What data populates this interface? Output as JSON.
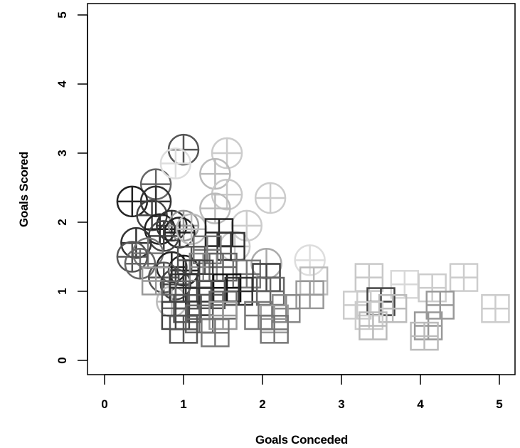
{
  "chart_data": {
    "type": "scatter",
    "xlabel": "Goals Conceded",
    "ylabel": "Goals Scored",
    "xlim": [
      -0.2,
      5.2
    ],
    "ylim": [
      -0.2,
      5.2
    ],
    "x_ticks": [
      "0",
      "1",
      "2",
      "3",
      "4",
      "5"
    ],
    "y_ticks": [
      "0",
      "1",
      "2",
      "3",
      "4",
      "5"
    ],
    "grid": false,
    "legend": "none",
    "series": [
      {
        "marker": "circle-plus",
        "points": [
          {
            "x": 1.0,
            "y": 3.05,
            "shade": "#555555"
          },
          {
            "x": 0.65,
            "y": 2.55,
            "shade": "#666666"
          },
          {
            "x": 0.9,
            "y": 2.85,
            "shade": "#dddddd"
          },
          {
            "x": 1.55,
            "y": 3.0,
            "shade": "#cccccc"
          },
          {
            "x": 1.4,
            "y": 2.7,
            "shade": "#bbbbbb"
          },
          {
            "x": 1.55,
            "y": 2.4,
            "shade": "#c8c8c8"
          },
          {
            "x": 2.1,
            "y": 2.35,
            "shade": "#cccccc"
          },
          {
            "x": 0.35,
            "y": 2.3,
            "shade": "#222222"
          },
          {
            "x": 0.65,
            "y": 2.3,
            "shade": "#333333"
          },
          {
            "x": 0.6,
            "y": 2.1,
            "shade": "#444444"
          },
          {
            "x": 1.4,
            "y": 2.2,
            "shade": "#bbbbbb"
          },
          {
            "x": 1.8,
            "y": 1.95,
            "shade": "#cccccc"
          },
          {
            "x": 0.7,
            "y": 1.9,
            "shade": "#222222"
          },
          {
            "x": 0.85,
            "y": 1.95,
            "shade": "#333333"
          },
          {
            "x": 1.0,
            "y": 1.95,
            "shade": "#999999"
          },
          {
            "x": 0.95,
            "y": 1.85,
            "shade": "#222222"
          },
          {
            "x": 0.75,
            "y": 1.8,
            "shade": "#444444"
          },
          {
            "x": 1.1,
            "y": 1.9,
            "shade": "#bbbbbb"
          },
          {
            "x": 0.4,
            "y": 1.7,
            "shade": "#333333"
          },
          {
            "x": 1.65,
            "y": 1.65,
            "shade": "#cccccc"
          },
          {
            "x": 0.55,
            "y": 1.55,
            "shade": "#777777"
          },
          {
            "x": 0.35,
            "y": 1.5,
            "shade": "#555555"
          },
          {
            "x": 0.45,
            "y": 1.4,
            "shade": "#666666"
          },
          {
            "x": 2.05,
            "y": 1.4,
            "shade": "#aaaaaa"
          },
          {
            "x": 2.6,
            "y": 1.45,
            "shade": "#dddddd"
          },
          {
            "x": 0.85,
            "y": 1.35,
            "shade": "#222222"
          },
          {
            "x": 1.0,
            "y": 1.3,
            "shade": "#222222"
          },
          {
            "x": 0.75,
            "y": 1.2,
            "shade": "#555555"
          },
          {
            "x": 0.9,
            "y": 1.1,
            "shade": "#444444"
          },
          {
            "x": 0.85,
            "y": 0.85,
            "shade": "#bbbbbb"
          }
        ]
      },
      {
        "marker": "square-plus",
        "points": [
          {
            "x": 1.45,
            "y": 1.85,
            "shade": "#222222"
          },
          {
            "x": 1.6,
            "y": 1.65,
            "shade": "#333333"
          },
          {
            "x": 1.3,
            "y": 1.6,
            "shade": "#777777"
          },
          {
            "x": 1.1,
            "y": 1.45,
            "shade": "#555555"
          },
          {
            "x": 1.25,
            "y": 1.35,
            "shade": "#888888"
          },
          {
            "x": 1.5,
            "y": 1.35,
            "shade": "#666666"
          },
          {
            "x": 1.2,
            "y": 1.25,
            "shade": "#444444"
          },
          {
            "x": 1.8,
            "y": 1.25,
            "shade": "#777777"
          },
          {
            "x": 2.05,
            "y": 1.2,
            "shade": "#444444"
          },
          {
            "x": 2.65,
            "y": 1.15,
            "shade": "#bbbbbb"
          },
          {
            "x": 3.35,
            "y": 1.2,
            "shade": "#c8c8c8"
          },
          {
            "x": 3.8,
            "y": 1.1,
            "shade": "#d8d8d8"
          },
          {
            "x": 4.15,
            "y": 1.05,
            "shade": "#cccccc"
          },
          {
            "x": 4.55,
            "y": 1.2,
            "shade": "#cccccc"
          },
          {
            "x": 0.65,
            "y": 1.15,
            "shade": "#999999"
          },
          {
            "x": 1.0,
            "y": 1.05,
            "shade": "#333333"
          },
          {
            "x": 1.55,
            "y": 1.05,
            "shade": "#111111"
          },
          {
            "x": 1.7,
            "y": 1.0,
            "shade": "#333333"
          },
          {
            "x": 2.1,
            "y": 1.0,
            "shade": "#666666"
          },
          {
            "x": 2.6,
            "y": 0.95,
            "shade": "#999999"
          },
          {
            "x": 1.35,
            "y": 0.95,
            "shade": "#555555"
          },
          {
            "x": 0.9,
            "y": 0.95,
            "shade": "#666666"
          },
          {
            "x": 1.2,
            "y": 0.85,
            "shade": "#333333"
          },
          {
            "x": 1.5,
            "y": 0.8,
            "shade": "#666666"
          },
          {
            "x": 1.05,
            "y": 0.75,
            "shade": "#555555"
          },
          {
            "x": 2.3,
            "y": 0.75,
            "shade": "#888888"
          },
          {
            "x": 3.2,
            "y": 0.8,
            "shade": "#cccccc"
          },
          {
            "x": 3.5,
            "y": 0.85,
            "shade": "#444444"
          },
          {
            "x": 3.65,
            "y": 0.75,
            "shade": "#bbbbbb"
          },
          {
            "x": 4.25,
            "y": 0.8,
            "shade": "#999999"
          },
          {
            "x": 4.95,
            "y": 0.75,
            "shade": "#cccccc"
          },
          {
            "x": 3.35,
            "y": 0.65,
            "shade": "#cccccc"
          },
          {
            "x": 0.9,
            "y": 0.65,
            "shade": "#444444"
          },
          {
            "x": 1.2,
            "y": 0.6,
            "shade": "#666666"
          },
          {
            "x": 1.5,
            "y": 0.65,
            "shade": "#999999"
          },
          {
            "x": 1.95,
            "y": 0.65,
            "shade": "#777777"
          },
          {
            "x": 2.15,
            "y": 0.6,
            "shade": "#999999"
          },
          {
            "x": 3.4,
            "y": 0.5,
            "shade": "#bbbbbb"
          },
          {
            "x": 4.1,
            "y": 0.5,
            "shade": "#999999"
          },
          {
            "x": 1.0,
            "y": 0.45,
            "shade": "#555555"
          },
          {
            "x": 2.15,
            "y": 0.45,
            "shade": "#777777"
          },
          {
            "x": 4.05,
            "y": 0.35,
            "shade": "#bbbbbb"
          },
          {
            "x": 1.4,
            "y": 0.4,
            "shade": "#777777"
          }
        ]
      }
    ]
  }
}
